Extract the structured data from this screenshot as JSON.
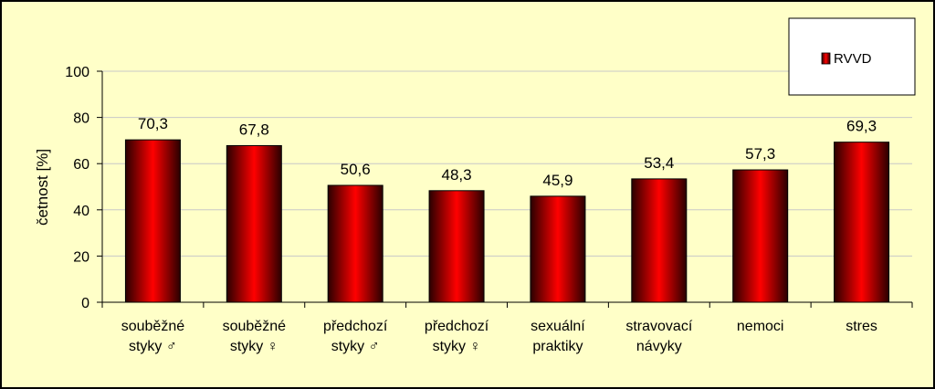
{
  "chart_data": {
    "type": "bar",
    "categories": [
      [
        "souběžné",
        "styky ♂"
      ],
      [
        "souběžné",
        "styky ♀"
      ],
      [
        "předchozí",
        "styky ♂"
      ],
      [
        "předchozí",
        "styky ♀"
      ],
      [
        "sexuální",
        "praktiky"
      ],
      [
        "stravovací",
        "návyky"
      ],
      [
        "nemoci"
      ],
      [
        "stres"
      ]
    ],
    "series": [
      {
        "name": "RVVD",
        "values": [
          70.3,
          67.8,
          50.6,
          48.3,
          45.9,
          53.4,
          57.3,
          69.3
        ]
      }
    ],
    "data_labels": [
      "70,3",
      "67,8",
      "50,6",
      "48,3",
      "45,9",
      "53,4",
      "57,3",
      "69,3"
    ],
    "ylabel": "četnost [%]",
    "ylim": [
      0,
      100
    ],
    "yticks": [
      0,
      20,
      40,
      60,
      80,
      100
    ],
    "grid": true,
    "legend_position": "top-right",
    "colors": {
      "background": "#ffffc8",
      "bar_center": "#ff0000",
      "bar_edge": "#2a0000",
      "gridline": "#c8c8c8"
    }
  }
}
